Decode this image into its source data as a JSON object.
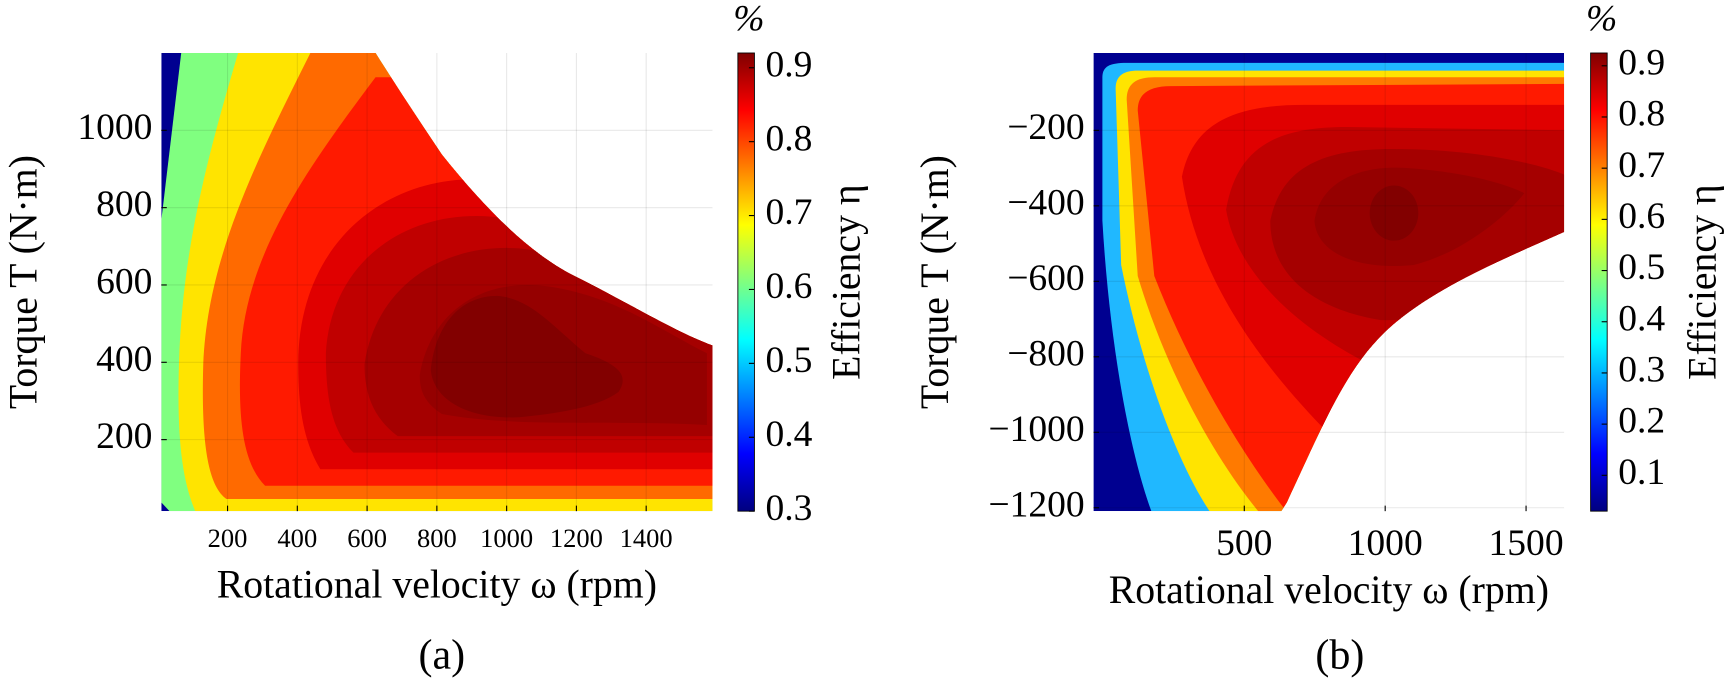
{
  "chart_data": [
    {
      "type": "contour",
      "panel_label": "(a)",
      "xlabel": "Rotational velocity ω (rpm)",
      "ylabel": "Torque T (N·m)",
      "colorbar_title": "%",
      "colorbar_label": "Efficiency η",
      "xlim": [
        10,
        1590
      ],
      "xticks": [
        200,
        400,
        600,
        800,
        1000,
        1200,
        1400
      ],
      "ylim": [
        15,
        1200
      ],
      "yticks": [
        200,
        400,
        600,
        800,
        1000
      ],
      "clim": [
        0.3,
        0.92
      ],
      "cticks": [
        0.3,
        0.4,
        0.5,
        0.6,
        0.7,
        0.8,
        0.9
      ],
      "grid": true
    },
    {
      "type": "contour",
      "panel_label": "(b)",
      "xlabel": "Rotational velocity ω (rpm)",
      "ylabel": "Torque T (N·m)",
      "colorbar_title": "%",
      "colorbar_label": "Efficiency η",
      "xlim": [
        -35,
        1635
      ],
      "xticks": [
        500,
        1000,
        1500
      ],
      "ylim": [
        -1209,
        5
      ],
      "yticks": [
        {
          "value": -1200,
          "label": "−1200"
        },
        {
          "value": -1000,
          "label": "−1000"
        },
        {
          "value": -800,
          "label": "−800"
        },
        {
          "value": -600,
          "label": "−600"
        },
        {
          "value": -400,
          "label": "−400"
        },
        {
          "value": -200,
          "label": "−200"
        }
      ],
      "clim": [
        0.03,
        0.925
      ],
      "cticks": [
        0.1,
        0.2,
        0.3,
        0.4,
        0.5,
        0.6,
        0.7,
        0.8,
        0.9
      ],
      "grid": true
    }
  ]
}
